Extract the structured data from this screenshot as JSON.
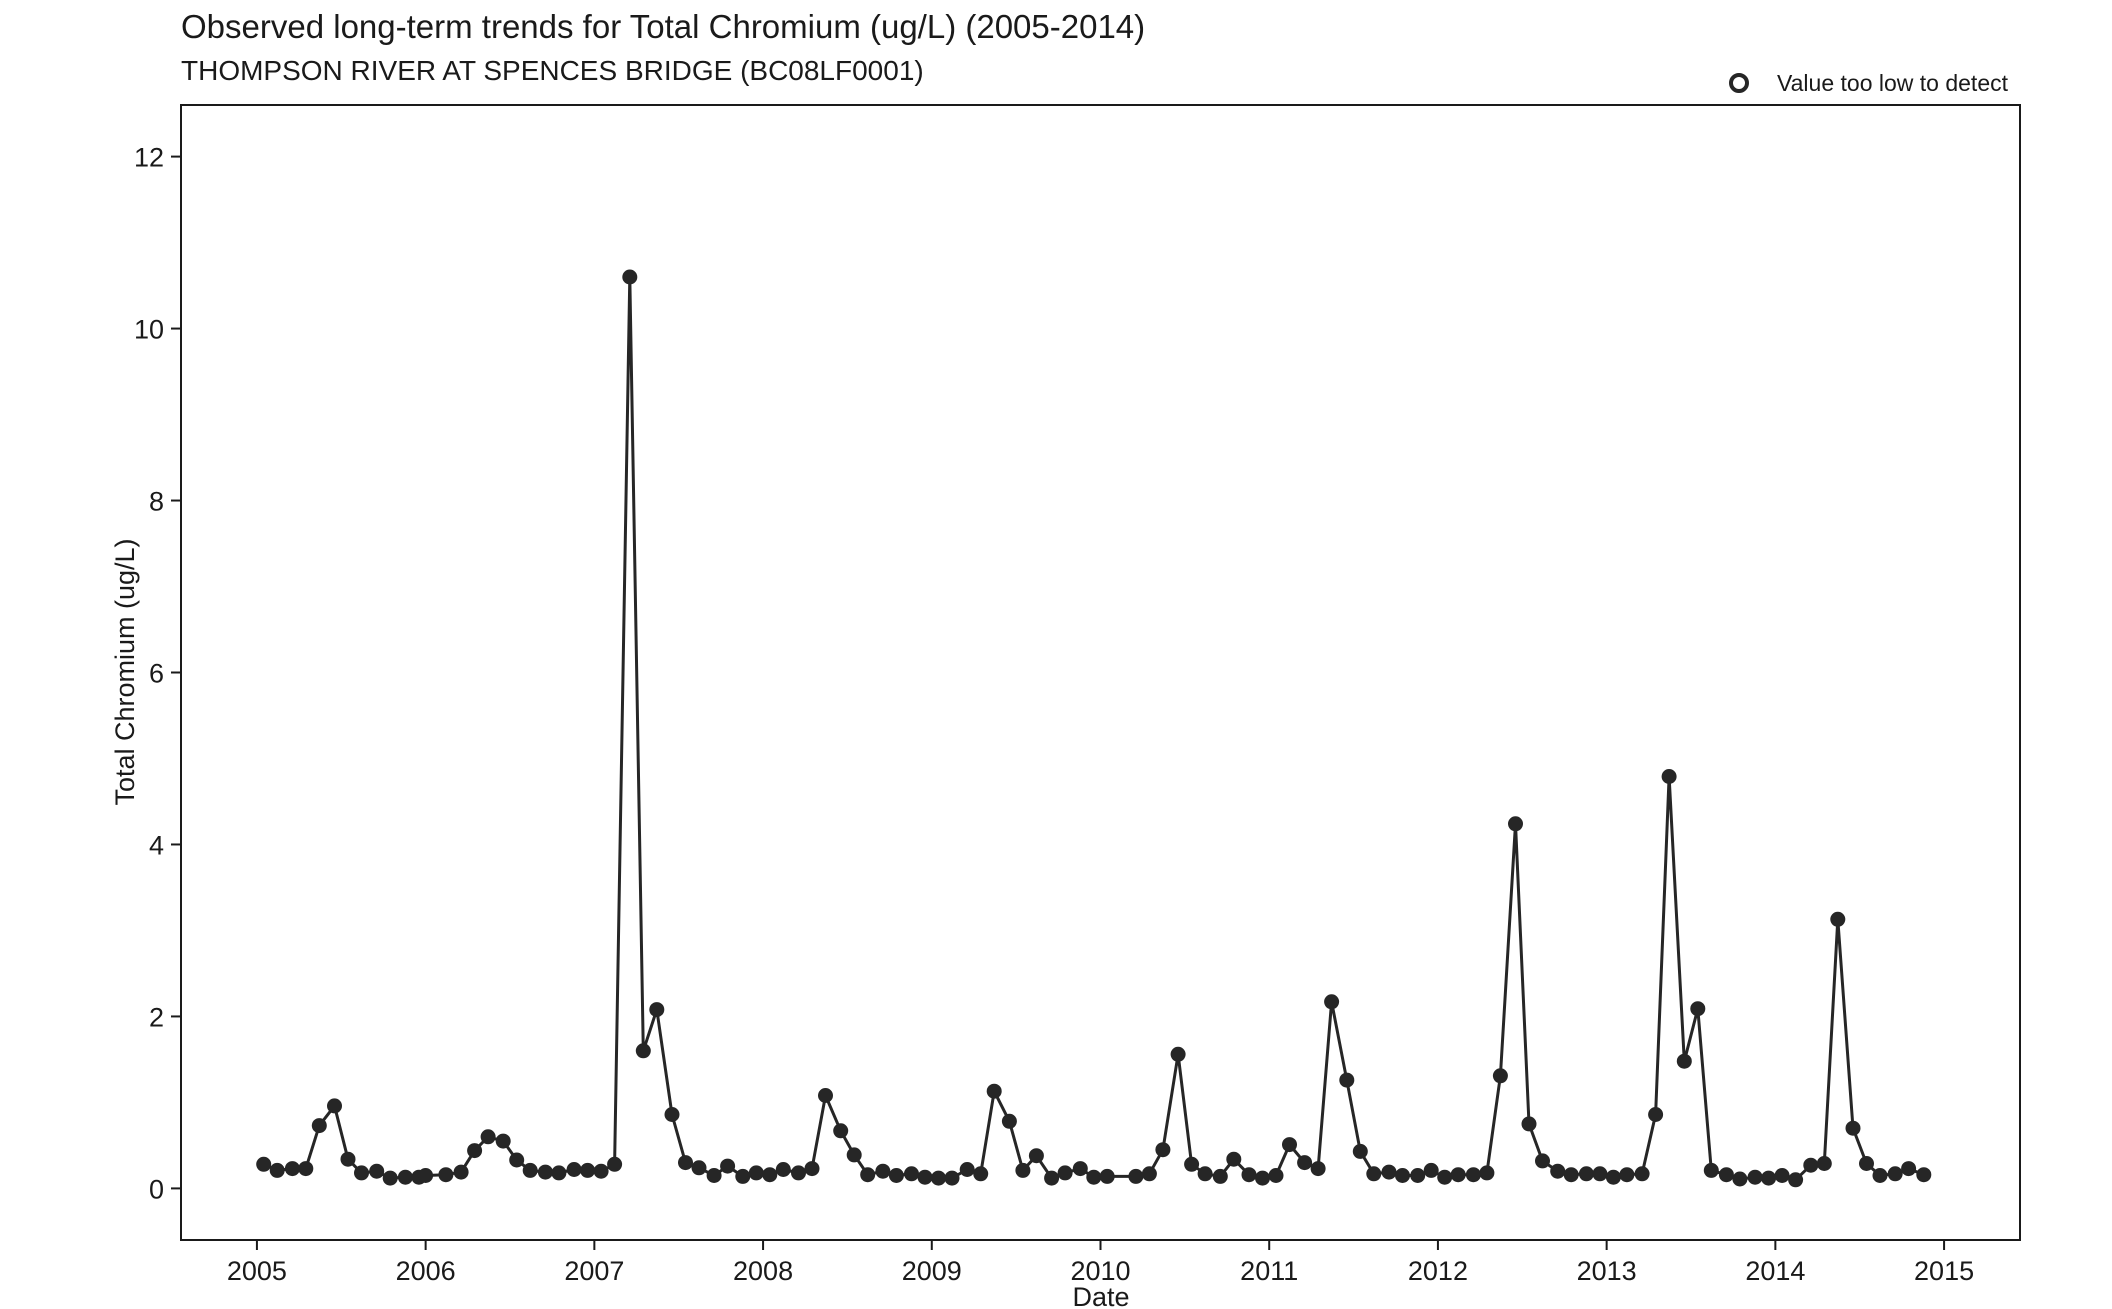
{
  "chart_data": {
    "type": "line",
    "title": "Observed long-term trends for Total Chromium (ug/L) (2005-2014)",
    "subtitle": "THOMPSON RIVER AT SPENCES BRIDGE (BC08LF0001)",
    "xlabel": "Date",
    "ylabel": "Total Chromium (ug/L)",
    "xlim": [
      2004.55,
      2015.45
    ],
    "ylim": [
      -0.6,
      12.6
    ],
    "x_ticks": [
      2005,
      2006,
      2007,
      2008,
      2009,
      2010,
      2011,
      2012,
      2013,
      2014,
      2015
    ],
    "y_ticks": [
      0,
      2,
      4,
      6,
      8,
      10,
      12
    ],
    "grid": false,
    "legend": {
      "position": "top-right",
      "entries": [
        {
          "label": "Value too low to detect",
          "marker": "open-circle"
        }
      ]
    },
    "colors": {
      "series": "#262626",
      "axis": "#1a1a1a"
    },
    "series": [
      {
        "x": [
          2005.04,
          2005.12,
          2005.21,
          2005.29,
          2005.37,
          2005.46,
          2005.54,
          2005.62,
          2005.71,
          2005.79,
          2005.88,
          2005.96,
          2006.0,
          2006.12,
          2006.21,
          2006.29,
          2006.37,
          2006.46,
          2006.54,
          2006.62,
          2006.71,
          2006.79,
          2006.88,
          2006.96,
          2007.04,
          2007.12,
          2007.21,
          2007.29,
          2007.37,
          2007.46,
          2007.54,
          2007.62,
          2007.71,
          2007.79,
          2007.88,
          2007.96,
          2008.04,
          2008.12,
          2008.21,
          2008.29,
          2008.37,
          2008.46,
          2008.54,
          2008.62,
          2008.71,
          2008.79,
          2008.88,
          2008.96,
          2009.04,
          2009.12,
          2009.21,
          2009.29,
          2009.37,
          2009.46,
          2009.54,
          2009.62,
          2009.71,
          2009.79,
          2009.88,
          2009.96,
          2010.04,
          2010.21,
          2010.29,
          2010.37,
          2010.46,
          2010.54,
          2010.62,
          2010.71,
          2010.79,
          2010.88,
          2010.96,
          2011.04,
          2011.12,
          2011.21,
          2011.29,
          2011.37,
          2011.46,
          2011.54,
          2011.62,
          2011.71,
          2011.79,
          2011.88,
          2011.96,
          2012.04,
          2012.12,
          2012.21,
          2012.29,
          2012.37,
          2012.46,
          2012.54,
          2012.62,
          2012.71,
          2012.79,
          2012.88,
          2012.96,
          2013.04,
          2013.12,
          2013.21,
          2013.29,
          2013.37,
          2013.46,
          2013.54,
          2013.62,
          2013.71,
          2013.79,
          2013.88,
          2013.96,
          2014.04,
          2014.12,
          2014.21,
          2014.29,
          2014.37,
          2014.46,
          2014.54,
          2014.62,
          2014.71,
          2014.79,
          2014.88
        ],
        "y": [
          0.28,
          0.21,
          0.23,
          0.23,
          0.73,
          0.96,
          0.34,
          0.18,
          0.2,
          0.12,
          0.13,
          0.13,
          0.15,
          0.16,
          0.19,
          0.44,
          0.6,
          0.55,
          0.33,
          0.21,
          0.19,
          0.18,
          0.22,
          0.21,
          0.2,
          0.28,
          10.6,
          1.6,
          2.08,
          0.86,
          0.3,
          0.24,
          0.15,
          0.26,
          0.14,
          0.18,
          0.16,
          0.22,
          0.18,
          0.23,
          1.08,
          0.67,
          0.39,
          0.16,
          0.2,
          0.15,
          0.17,
          0.13,
          0.12,
          0.12,
          0.22,
          0.17,
          1.13,
          0.78,
          0.21,
          0.38,
          0.12,
          0.18,
          0.23,
          0.13,
          0.14,
          0.14,
          0.17,
          0.45,
          1.56,
          0.28,
          0.17,
          0.14,
          0.34,
          0.16,
          0.12,
          0.15,
          0.51,
          0.3,
          0.23,
          2.17,
          1.26,
          0.43,
          0.17,
          0.19,
          0.15,
          0.15,
          0.21,
          0.13,
          0.16,
          0.16,
          0.18,
          1.31,
          4.24,
          0.75,
          0.32,
          0.2,
          0.16,
          0.17,
          0.17,
          0.13,
          0.16,
          0.17,
          0.86,
          4.79,
          1.48,
          2.09,
          0.21,
          0.16,
          0.11,
          0.13,
          0.12,
          0.15,
          0.1,
          0.27,
          0.29,
          3.13,
          0.7,
          0.29,
          0.15,
          0.17,
          0.23,
          0.16
        ]
      }
    ]
  }
}
